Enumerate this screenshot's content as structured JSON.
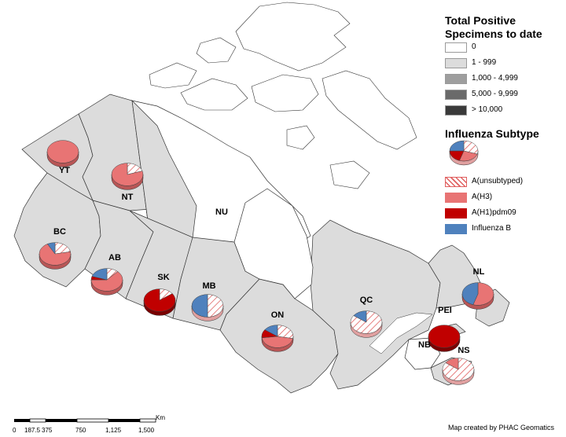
{
  "legend": {
    "specimens_title": "Total Positive Specimens to date",
    "specimens_title_line1": "Total Positive",
    "specimens_title_line2": "Specimens to date",
    "specimen_classes": [
      {
        "label": "0",
        "color": "#ffffff"
      },
      {
        "label": "1 - 999",
        "color": "#dcdcdc"
      },
      {
        "label": "1,000 - 4,999",
        "color": "#9e9e9e"
      },
      {
        "label": "5,000 - 9,999",
        "color": "#6a6a6a"
      },
      {
        "label": "> 10,000",
        "color": "#3a3a3a"
      }
    ],
    "subtype_title": "Influenza Subtype",
    "subtypes": [
      {
        "label": "A(unsubtyped)",
        "color": "#f2a0a0",
        "pattern": "hatch"
      },
      {
        "label": "A(H3)",
        "color": "#e87474"
      },
      {
        "label": "A(H1)pdm09",
        "color": "#c00000"
      },
      {
        "label": "Influenza B",
        "color": "#4f81bd"
      }
    ]
  },
  "provinces": [
    {
      "code": "YT",
      "class": "1 - 999",
      "pie": [
        0,
        1.0,
        0,
        0
      ]
    },
    {
      "code": "NT",
      "class": "1 - 999",
      "pie": [
        0.2,
        0.8,
        0,
        0
      ]
    },
    {
      "code": "NU",
      "class": "0",
      "pie": null
    },
    {
      "code": "BC",
      "class": "1 - 999",
      "pie": [
        0.22,
        0.7,
        0,
        0.08
      ]
    },
    {
      "code": "AB",
      "class": "1 - 999",
      "pie": [
        0.12,
        0.63,
        0.05,
        0.2
      ]
    },
    {
      "code": "SK",
      "class": "1 - 999",
      "pie": [
        0.15,
        0,
        0.85,
        0
      ]
    },
    {
      "code": "MB",
      "class": "1 - 999",
      "pie": [
        0.5,
        0,
        0,
        0.5
      ]
    },
    {
      "code": "ON",
      "class": "1 - 999",
      "pie": [
        0.28,
        0.45,
        0.12,
        0.15
      ]
    },
    {
      "code": "QC",
      "class": "1 - 999",
      "pie": [
        0.85,
        0,
        0,
        0.15
      ]
    },
    {
      "code": "NB",
      "class": "0",
      "pie": null
    },
    {
      "code": "NS",
      "class": "1 - 999",
      "pie": [
        0.85,
        0.15,
        0,
        0
      ]
    },
    {
      "code": "PEI",
      "class": "1 - 999",
      "pie": [
        0,
        0,
        1.0,
        0
      ]
    },
    {
      "code": "NL",
      "class": "1 - 999",
      "pie": [
        0,
        0.55,
        0,
        0.45
      ]
    }
  ],
  "legend_example_pie": [
    0.3,
    0.25,
    0.2,
    0.25
  ],
  "scale_bar": {
    "unit": "Km",
    "ticks": [
      "0",
      "187.5",
      "375",
      "750",
      "1,125",
      "1,500"
    ]
  },
  "credit": "Map created by PHAC Geomatics"
}
